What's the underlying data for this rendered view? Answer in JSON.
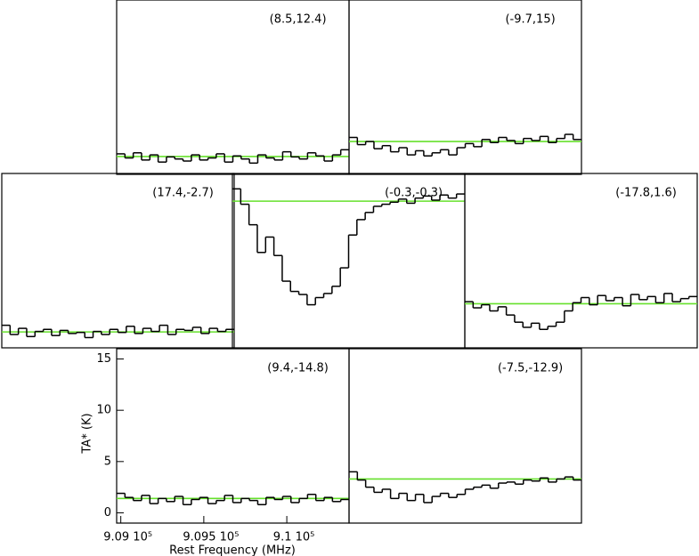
{
  "chart_data": [
    {
      "type": "step",
      "title": "(8.5,12.4)",
      "color": "#000000",
      "baseline_color": "#66e02c",
      "baseline": 0.74,
      "xlim": [
        908975,
        910375
      ],
      "ylim": [
        -1,
        16
      ],
      "x": [
        909000,
        909050,
        909100,
        909150,
        909200,
        909250,
        909300,
        909350,
        909400,
        909450,
        909500,
        909550,
        909600,
        909650,
        909700,
        909750,
        909800,
        909850,
        909900,
        909950,
        910000,
        910050,
        910100,
        910150,
        910200,
        910250,
        910300,
        910350
      ],
      "values": [
        1.0,
        0.6,
        1.1,
        0.4,
        0.9,
        0.2,
        0.7,
        0.5,
        0.3,
        0.9,
        0.4,
        0.6,
        1.0,
        0.2,
        0.8,
        0.5,
        0.1,
        0.9,
        0.6,
        0.4,
        1.2,
        0.7,
        0.5,
        1.1,
        0.8,
        0.3,
        0.9,
        1.4
      ]
    },
    {
      "type": "step",
      "title": "(-9.7,15)",
      "color": "#000000",
      "baseline_color": "#66e02c",
      "baseline": 2.2,
      "xlim": [
        908975,
        910375
      ],
      "ylim": [
        -1,
        16
      ],
      "x": [
        909000,
        909050,
        909100,
        909150,
        909200,
        909250,
        909300,
        909350,
        909400,
        909450,
        909500,
        909550,
        909600,
        909650,
        909700,
        909750,
        909800,
        909850,
        909900,
        909950,
        910000,
        910050,
        910100,
        910150,
        910200,
        910250,
        910300,
        910350
      ],
      "values": [
        2.6,
        1.9,
        2.2,
        1.5,
        1.8,
        1.2,
        1.6,
        0.9,
        1.3,
        0.8,
        1.1,
        1.4,
        0.9,
        1.6,
        2.0,
        1.7,
        2.4,
        2.1,
        2.6,
        2.3,
        2.0,
        2.5,
        2.3,
        2.7,
        2.1,
        2.5,
        2.9,
        2.4
      ]
    },
    {
      "type": "step",
      "title": "(17.4,-2.7)",
      "color": "#000000",
      "baseline_color": "#66e02c",
      "baseline": 0.55,
      "xlim": [
        908975,
        910375
      ],
      "ylim": [
        -1,
        16
      ],
      "x": [
        909000,
        909050,
        909100,
        909150,
        909200,
        909250,
        909300,
        909350,
        909400,
        909450,
        909500,
        909550,
        909600,
        909650,
        909700,
        909750,
        909800,
        909850,
        909900,
        909950,
        910000,
        910050,
        910100,
        910150,
        910200,
        910250,
        910300,
        910350
      ],
      "values": [
        1.2,
        0.3,
        0.9,
        0.1,
        0.6,
        0.8,
        0.2,
        0.7,
        0.4,
        0.5,
        0.0,
        0.6,
        0.3,
        0.8,
        0.5,
        1.1,
        0.4,
        0.9,
        0.6,
        1.2,
        0.3,
        0.8,
        0.7,
        1.0,
        0.4,
        0.9,
        0.6,
        0.8
      ]
    },
    {
      "type": "step",
      "title": "(-0.3,-0.3)",
      "color": "#000000",
      "baseline_color": "#66e02c",
      "baseline": 13.3,
      "xlim": [
        908975,
        910375
      ],
      "ylim": [
        -1,
        16
      ],
      "x": [
        909000,
        909050,
        909100,
        909150,
        909200,
        909250,
        909300,
        909350,
        909400,
        909450,
        909500,
        909550,
        909600,
        909650,
        909700,
        909750,
        909800,
        909850,
        909900,
        909950,
        910000,
        910050,
        910100,
        910150,
        910200,
        910250,
        910300,
        910350
      ],
      "values": [
        14.5,
        13.0,
        11.0,
        8.3,
        9.8,
        8.0,
        5.5,
        4.5,
        4.2,
        3.2,
        3.9,
        4.3,
        5.0,
        6.8,
        10.0,
        11.5,
        12.2,
        12.8,
        13.0,
        13.2,
        13.5,
        13.1,
        13.6,
        13.8,
        13.4,
        13.9,
        13.6,
        14.0
      ]
    },
    {
      "type": "step",
      "title": "(-17.8,1.6)",
      "color": "#000000",
      "baseline_color": "#66e02c",
      "baseline": 3.3,
      "xlim": [
        908975,
        910375
      ],
      "ylim": [
        -1,
        16
      ],
      "x": [
        909000,
        909050,
        909100,
        909150,
        909200,
        909250,
        909300,
        909350,
        909400,
        909450,
        909500,
        909550,
        909600,
        909650,
        909700,
        909750,
        909800,
        909850,
        909900,
        909950,
        910000,
        910050,
        910100,
        910150,
        910200,
        910250,
        910300,
        910350
      ],
      "values": [
        3.5,
        2.9,
        3.2,
        2.6,
        3.0,
        2.2,
        1.5,
        1.0,
        1.4,
        0.8,
        1.1,
        1.5,
        2.6,
        3.4,
        3.9,
        3.2,
        4.1,
        3.6,
        3.9,
        3.1,
        4.2,
        3.7,
        4.0,
        3.4,
        4.3,
        3.5,
        3.8,
        4.0
      ]
    },
    {
      "type": "step",
      "title": "(9.4,-14.8)",
      "color": "#000000",
      "baseline_color": "#66e02c",
      "baseline": 1.4,
      "xlim": [
        908975,
        910375
      ],
      "ylim": [
        -1,
        16
      ],
      "xlabel": "Rest Frequency (MHz)",
      "ylabel": "TA* (K)",
      "xticks": [
        {
          "value": 909000,
          "label": "9.09 10⁵"
        },
        {
          "value": 909500,
          "label": "9.095 10⁵"
        },
        {
          "value": 910000,
          "label": "9.1 10⁵"
        }
      ],
      "yticks": [
        0,
        5,
        10,
        15
      ],
      "x": [
        909000,
        909050,
        909100,
        909150,
        909200,
        909250,
        909300,
        909350,
        909400,
        909450,
        909500,
        909550,
        909600,
        909650,
        909700,
        909750,
        909800,
        909850,
        909900,
        909950,
        910000,
        910050,
        910100,
        910150,
        910200,
        910250,
        910300,
        910350
      ],
      "values": [
        1.9,
        1.5,
        1.2,
        1.7,
        0.9,
        1.4,
        1.1,
        1.6,
        0.8,
        1.3,
        1.5,
        0.9,
        1.2,
        1.7,
        1.0,
        1.4,
        1.2,
        0.8,
        1.5,
        1.3,
        1.6,
        1.0,
        1.4,
        1.8,
        1.2,
        1.5,
        1.1,
        1.3
      ]
    },
    {
      "type": "step",
      "title": "(-7.5,-12.9)",
      "color": "#000000",
      "baseline_color": "#66e02c",
      "baseline": 3.3,
      "xlim": [
        908975,
        910375
      ],
      "ylim": [
        -1,
        16
      ],
      "x": [
        909000,
        909050,
        909100,
        909150,
        909200,
        909250,
        909300,
        909350,
        909400,
        909450,
        909500,
        909550,
        909600,
        909650,
        909700,
        909750,
        909800,
        909850,
        909900,
        909950,
        910000,
        910050,
        910100,
        910150,
        910200,
        910250,
        910300,
        910350
      ],
      "values": [
        4.0,
        3.2,
        2.5,
        2.0,
        2.3,
        1.4,
        1.9,
        1.2,
        1.8,
        1.0,
        1.6,
        1.9,
        1.5,
        1.8,
        2.3,
        2.5,
        2.7,
        2.4,
        2.9,
        3.0,
        2.8,
        3.2,
        3.1,
        3.4,
        3.0,
        3.3,
        3.5,
        3.2
      ]
    }
  ]
}
